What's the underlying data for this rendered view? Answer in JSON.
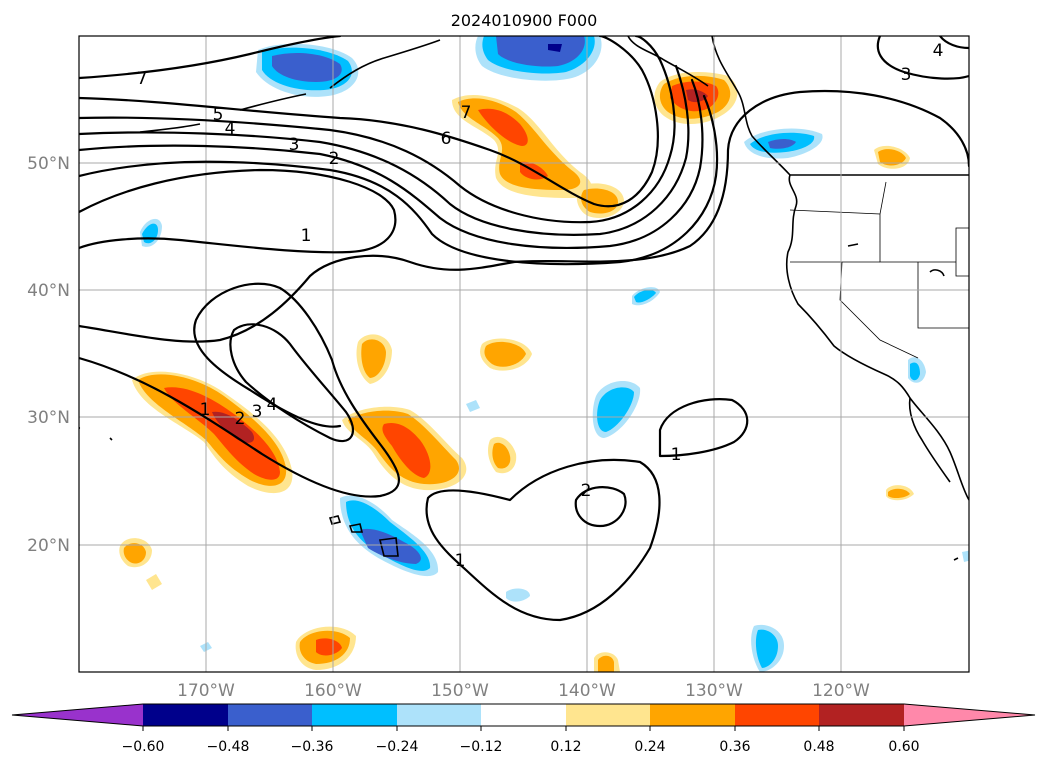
{
  "title": "2024010900 F000",
  "map": {
    "lat_labels": [
      "50°N",
      "40°N",
      "30°N",
      "20°N"
    ],
    "lon_labels": [
      "170°W",
      "160°W",
      "150°W",
      "140°W",
      "130°W",
      "120°W"
    ],
    "contour_labels": [
      "7",
      "5",
      "4",
      "3",
      "2",
      "6",
      "7",
      "1",
      "1",
      "2",
      "3",
      "4",
      "1",
      "2",
      "1",
      "3",
      "4"
    ]
  },
  "colorbar": {
    "ticks": [
      "−0.60",
      "−0.48",
      "−0.36",
      "−0.24",
      "−0.12",
      "0.12",
      "0.24",
      "0.36",
      "0.48",
      "0.60"
    ],
    "colors": [
      "#9932CC",
      "#00008B",
      "#3A5FCD",
      "#00BFFF",
      "#ADE2FA",
      "#FFFFFF",
      "#FFE58F",
      "#FFA500",
      "#FF4500",
      "#B22222",
      "#FF88AA"
    ],
    "extend": "both"
  },
  "colors": {
    "light_blue": "#ADE2FA",
    "blue": "#00BFFF",
    "royal_blue": "#3A5FCD",
    "navy": "#00008B",
    "yellow": "#FFE58F",
    "orange": "#FFA500",
    "red_orange": "#FF4500",
    "firebrick": "#B22222"
  }
}
